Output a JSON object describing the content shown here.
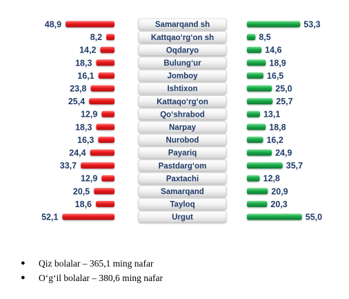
{
  "chart_data": {
    "type": "bar",
    "categories": [
      "Samarqand sh",
      "Kattqaо‘rg‘on sh",
      "Oqdaryo",
      "Bulung‘ur",
      "Jomboy",
      "Ishtixon",
      "Kattaqo‘rg‘on",
      "Qo‘shrabod",
      "Narpay",
      "Nurobod",
      "Payariq",
      "Pastdarg‘om",
      "Paxtachi",
      "Samarqand",
      "Tayloq",
      "Urgut"
    ],
    "value_labels_left": [
      "48,9",
      "8,2",
      "14,2",
      "18,3",
      "16,1",
      "23,8",
      "25,4",
      "12,9",
      "18,3",
      "16,3",
      "24,4",
      "33,7",
      "12,9",
      "20,5",
      "18,6",
      "52,1"
    ],
    "value_labels_right": [
      "53,3",
      "8,5",
      "14,6",
      "18,9",
      "16,5",
      "25,0",
      "25,7",
      "13,1",
      "18,8",
      "16,2",
      "24,9",
      "35,7",
      "12,8",
      "20,9",
      "20,3",
      "55,0"
    ],
    "series": [
      {
        "values": [
          48.9,
          8.2,
          14.2,
          18.3,
          16.1,
          23.8,
          25.4,
          12.9,
          18.3,
          16.3,
          24.4,
          33.7,
          12.9,
          20.5,
          18.6,
          52.1
        ],
        "color": "#e8191c"
      },
      {
        "values": [
          53.3,
          8.5,
          14.6,
          18.9,
          16.5,
          25.0,
          25.7,
          13.1,
          18.8,
          16.2,
          24.9,
          35.7,
          12.8,
          20.9,
          20.3,
          55.0
        ],
        "color": "#1aa84a"
      }
    ]
  },
  "legend": [
    {
      "bullet": "●",
      "text": "Qiz bolalar – 365,1 ming nafar"
    },
    {
      "bullet": "●",
      "text": "O‘g‘il bolalar – 380,6 ming nafar"
    }
  ]
}
